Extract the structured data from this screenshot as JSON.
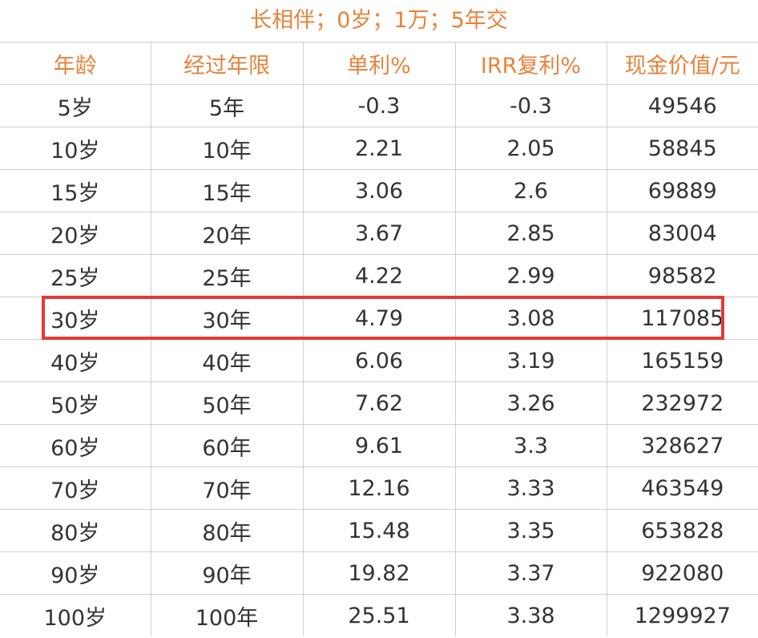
{
  "title": "长相伴；0岁；1万；5年交",
  "colors": {
    "header_text": "#e8823a",
    "highlight_border": "#e53935",
    "cell_text": "#333333",
    "grid_line": "#cfcfcf"
  },
  "headers": [
    "年龄",
    "经过年限",
    "单利%",
    "IRR复利%",
    "现金价值/元"
  ],
  "rows": [
    [
      "5岁",
      "5年",
      "-0.3",
      "-0.3",
      "49546"
    ],
    [
      "10岁",
      "10年",
      "2.21",
      "2.05",
      "58845"
    ],
    [
      "15岁",
      "15年",
      "3.06",
      "2.6",
      "69889"
    ],
    [
      "20岁",
      "20年",
      "3.67",
      "2.85",
      "83004"
    ],
    [
      "25岁",
      "25年",
      "4.22",
      "2.99",
      "98582"
    ],
    [
      "30岁",
      "30年",
      "4.79",
      "3.08",
      "117085"
    ],
    [
      "40岁",
      "40年",
      "6.06",
      "3.19",
      "165159"
    ],
    [
      "50岁",
      "50年",
      "7.62",
      "3.26",
      "232972"
    ],
    [
      "60岁",
      "60年",
      "9.61",
      "3.3",
      "328627"
    ],
    [
      "70岁",
      "70年",
      "12.16",
      "3.33",
      "463549"
    ],
    [
      "80岁",
      "80年",
      "15.48",
      "3.35",
      "653828"
    ],
    [
      "90岁",
      "90年",
      "19.82",
      "3.37",
      "922080"
    ],
    [
      "100岁",
      "100年",
      "25.51",
      "3.38",
      "1299927"
    ]
  ],
  "highlighted_row": 5
}
